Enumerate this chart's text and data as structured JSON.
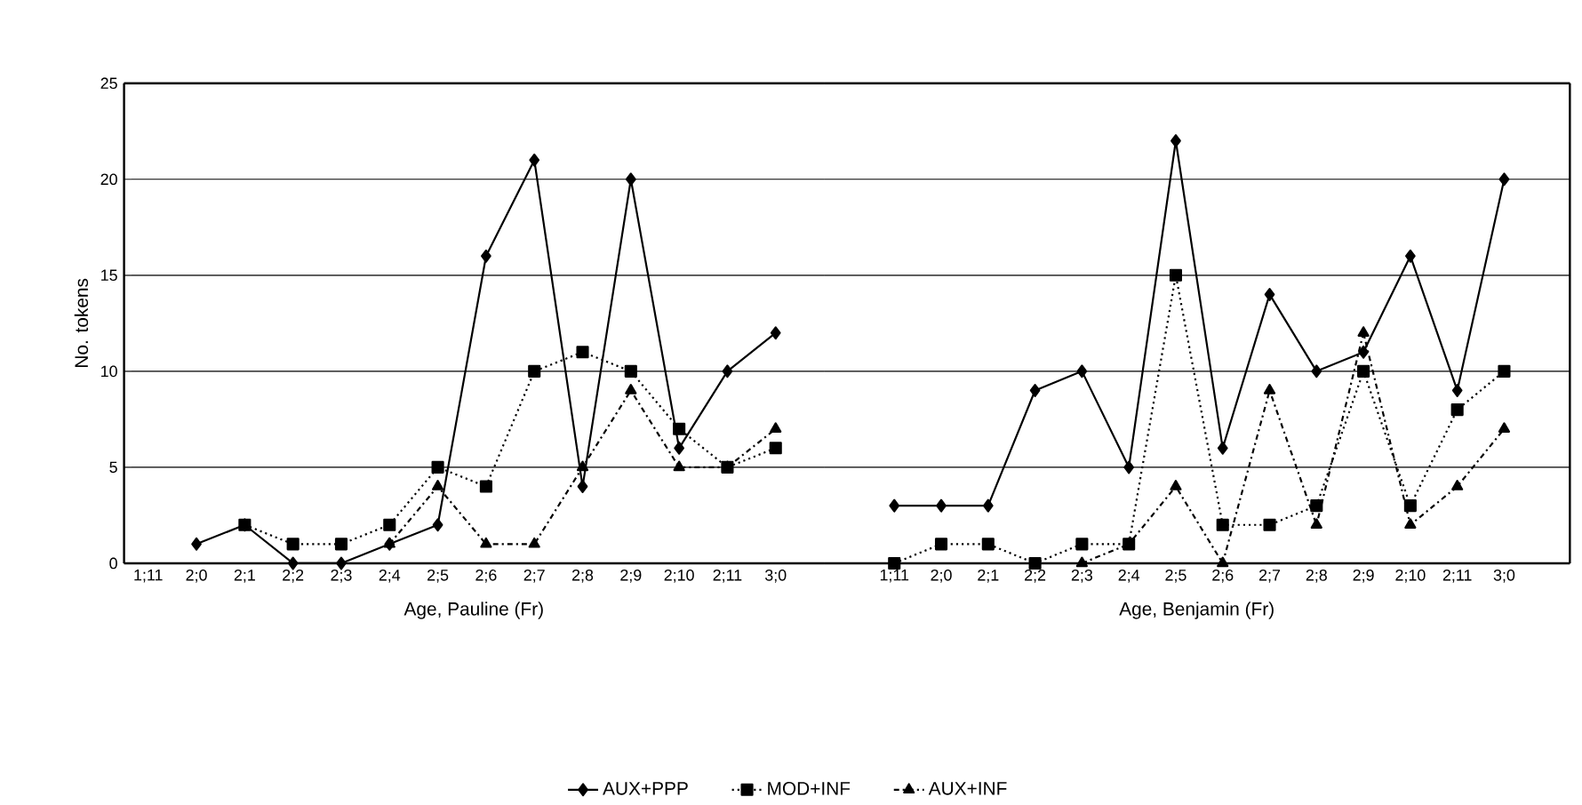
{
  "chart_data": [
    {
      "type": "line",
      "xlabel": "Age, Pauline (Fr)",
      "ylabel": "No. tokens",
      "categories": [
        "1;11",
        "2;0",
        "2;1",
        "2;2",
        "2;3",
        "2;4",
        "2;5",
        "2;6",
        "2;7",
        "2;8",
        "2;9",
        "2;10",
        "2;11",
        "3;0"
      ],
      "series": [
        {
          "name": "AUX+PPP",
          "color": "#000000",
          "marker": "diamond",
          "line_style": "solid",
          "values": [
            null,
            1,
            2,
            0,
            0,
            1,
            2,
            16,
            21,
            4,
            20,
            6,
            10,
            12
          ]
        },
        {
          "name": "MOD+INF",
          "color": "#000000",
          "marker": "square",
          "line_style": "dotted",
          "values": [
            null,
            null,
            2,
            1,
            1,
            2,
            5,
            4,
            10,
            11,
            10,
            7,
            5,
            6
          ]
        },
        {
          "name": "AUX+INF",
          "color": "#000000",
          "marker": "triangle",
          "line_style": "dashed",
          "values": [
            null,
            null,
            null,
            null,
            null,
            1,
            4,
            1,
            1,
            5,
            9,
            5,
            5,
            7
          ]
        }
      ],
      "ylim": [
        0,
        25
      ],
      "yticks": [
        0,
        5,
        10,
        15,
        20,
        25
      ],
      "grid": "y",
      "legend": "bottom"
    },
    {
      "type": "line",
      "xlabel": "Age, Benjamin (Fr)",
      "categories": [
        "1;11",
        "2;0",
        "2;1",
        "2;2",
        "2;3",
        "2;4",
        "2;5",
        "2;6",
        "2;7",
        "2;8",
        "2;9",
        "2;10",
        "2;11",
        "3;0"
      ],
      "series": [
        {
          "color": "#000000",
          "marker": "diamond",
          "line_style": "solid",
          "values": [
            3,
            3,
            3,
            9,
            10,
            5,
            22,
            6,
            14,
            10,
            11,
            16,
            9,
            20
          ]
        },
        {
          "color": "#000000",
          "marker": "square",
          "line_style": "dotted",
          "values": [
            0,
            1,
            1,
            0,
            1,
            1,
            15,
            2,
            2,
            3,
            10,
            3,
            8,
            10
          ]
        },
        {
          "color": "#000000",
          "marker": "triangle",
          "line_style": "dashed",
          "values": [
            null,
            null,
            null,
            null,
            0,
            1,
            4,
            0,
            9,
            2,
            12,
            2,
            4,
            7
          ]
        }
      ],
      "ylim": [
        0,
        25
      ],
      "yticks": [
        0,
        5,
        10,
        15,
        20,
        25
      ],
      "grid": "y",
      "tick_labels": "x"
    }
  ]
}
